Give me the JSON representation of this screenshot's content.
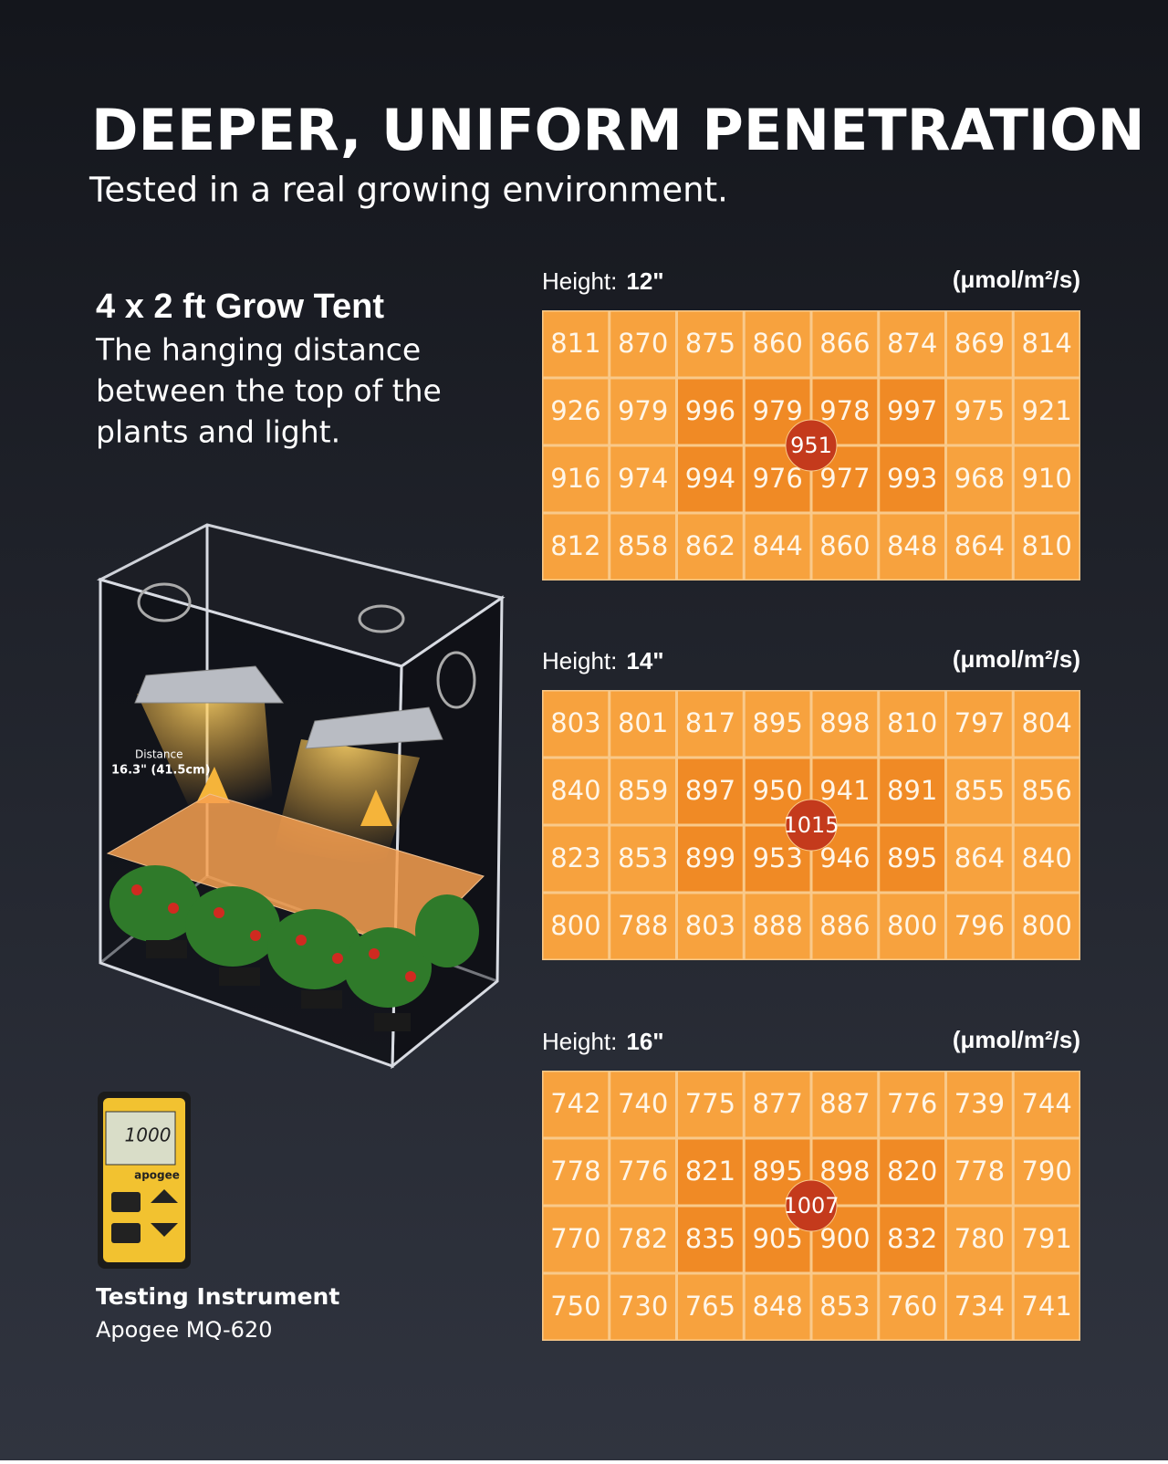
{
  "header": {
    "title": "DEEPER, UNIFORM PENETRATION",
    "subtitle": "Tested in a real growing environment."
  },
  "tent": {
    "title": "4 x 2 ft Grow Tent",
    "description": [
      "The hanging distance",
      "between the top of the",
      "plants and light."
    ],
    "distance_label": "Distance",
    "distance_value": "16.3\" (41.5cm)"
  },
  "instrument": {
    "title": "Testing Instrument",
    "name": "Apogee MQ-620",
    "display": "1000",
    "brand": "apogee"
  },
  "grids": [
    {
      "label": "Height:",
      "height": "12\"",
      "unit": "(μmol/m²/s)",
      "center": 951,
      "rows": [
        [
          811,
          870,
          875,
          860,
          866,
          874,
          869,
          814
        ],
        [
          926,
          979,
          996,
          979,
          978,
          997,
          975,
          921
        ],
        [
          916,
          974,
          994,
          976,
          977,
          993,
          968,
          910
        ],
        [
          812,
          858,
          862,
          844,
          860,
          848,
          864,
          810
        ]
      ]
    },
    {
      "label": "Height:",
      "height": "14\"",
      "unit": "(μmol/m²/s)",
      "center": 1015,
      "rows": [
        [
          803,
          801,
          817,
          895,
          898,
          810,
          797,
          804
        ],
        [
          840,
          859,
          897,
          950,
          941,
          891,
          855,
          856
        ],
        [
          823,
          853,
          899,
          953,
          946,
          895,
          864,
          840
        ],
        [
          800,
          788,
          803,
          888,
          886,
          800,
          796,
          800
        ]
      ]
    },
    {
      "label": "Height:",
      "height": "16\"",
      "unit": "(μmol/m²/s)",
      "center": 1007,
      "rows": [
        [
          742,
          740,
          775,
          877,
          887,
          776,
          739,
          744
        ],
        [
          778,
          776,
          821,
          895,
          898,
          820,
          778,
          790
        ],
        [
          770,
          782,
          835,
          905,
          900,
          832,
          780,
          791
        ],
        [
          750,
          730,
          765,
          848,
          853,
          760,
          734,
          741
        ]
      ]
    }
  ]
}
